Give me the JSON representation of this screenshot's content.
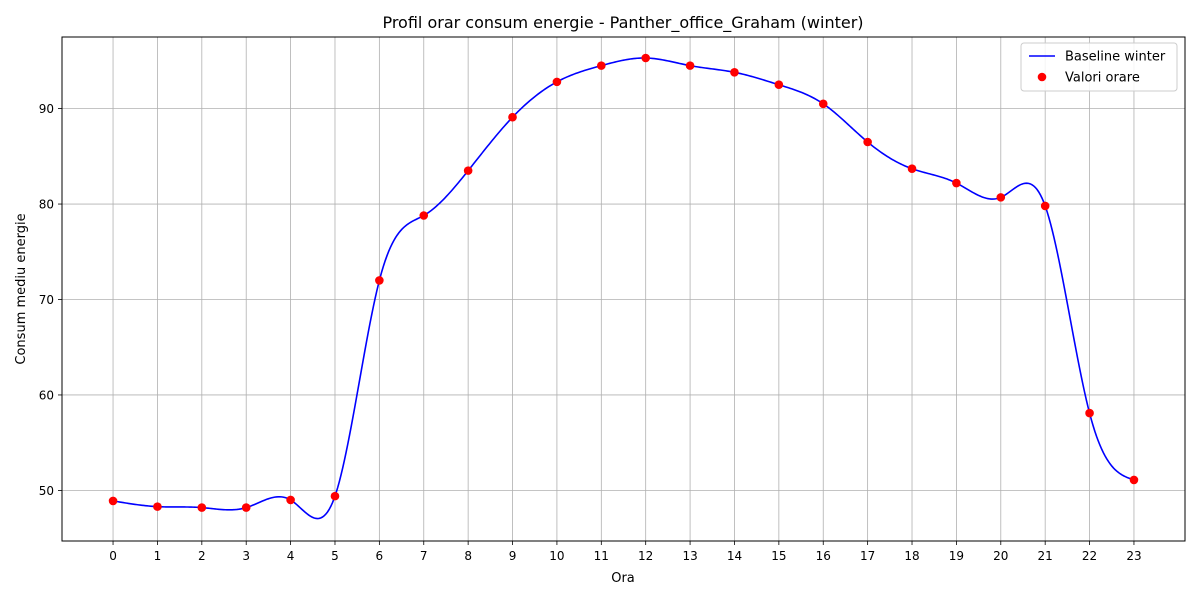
{
  "chart_data": {
    "type": "line",
    "title": "Profil orar consum energie - Panther_office_Graham (winter)",
    "xlabel": "Ora",
    "ylabel": "Consum mediu energie",
    "x": [
      0,
      1,
      2,
      3,
      4,
      5,
      6,
      7,
      8,
      9,
      10,
      11,
      12,
      13,
      14,
      15,
      16,
      17,
      18,
      19,
      20,
      21,
      22,
      23
    ],
    "x_tick_labels": [
      "0",
      "1",
      "2",
      "3",
      "4",
      "5",
      "6",
      "7",
      "8",
      "9",
      "10",
      "11",
      "12",
      "13",
      "14",
      "15",
      "16",
      "17",
      "18",
      "19",
      "20",
      "21",
      "22",
      "23"
    ],
    "y_ticks": [
      50,
      60,
      70,
      80,
      90
    ],
    "y_tick_labels": [
      "50",
      "60",
      "70",
      "80",
      "90"
    ],
    "xlim": [
      -1.15,
      24.15
    ],
    "ylim": [
      44.7,
      97.5
    ],
    "grid": true,
    "legend_position": "top-right",
    "series": [
      {
        "name": "Baseline winter",
        "kind": "line",
        "color": "#0000ff",
        "smooth": true,
        "values": [
          48.9,
          48.3,
          48.2,
          48.2,
          49.0,
          49.4,
          72.0,
          78.8,
          83.5,
          89.1,
          92.8,
          94.5,
          95.3,
          94.5,
          93.8,
          92.5,
          90.5,
          86.5,
          83.7,
          82.2,
          80.7,
          79.8,
          58.1,
          51.1
        ]
      },
      {
        "name": "Valori orare",
        "kind": "scatter",
        "color": "#ff0000",
        "values": [
          48.9,
          48.3,
          48.2,
          48.2,
          49.0,
          49.4,
          72.0,
          78.8,
          83.5,
          89.1,
          92.8,
          94.5,
          95.3,
          94.5,
          93.8,
          92.5,
          90.5,
          86.5,
          83.7,
          82.2,
          80.7,
          79.8,
          58.1,
          51.1
        ]
      }
    ]
  }
}
